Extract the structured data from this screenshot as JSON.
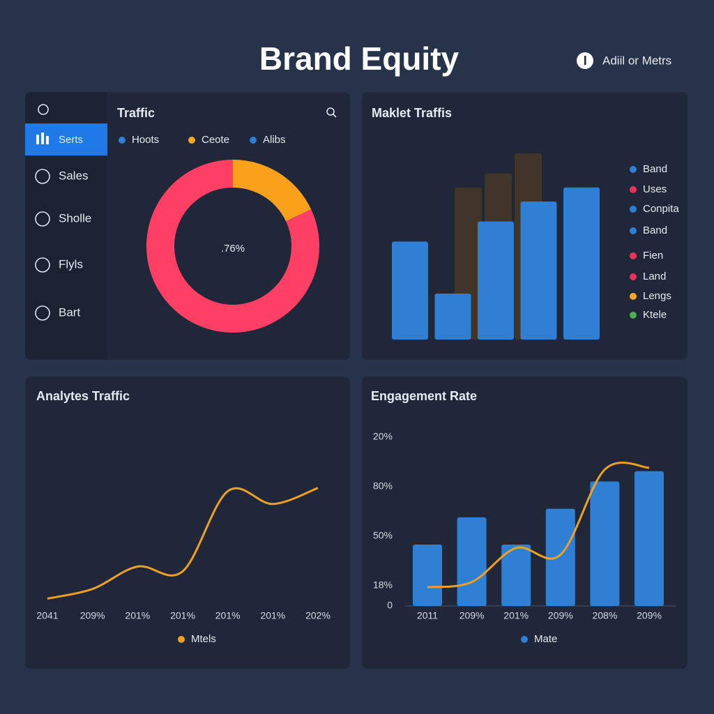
{
  "header": {
    "title": "Brand Equity",
    "action": "Adiil or Metrs"
  },
  "sidebar": {
    "items": [
      "Serts",
      "Sales",
      "Sholle",
      "Flyls",
      "Bart"
    ]
  },
  "chart_data": [
    {
      "type": "donut",
      "title": "Traffic",
      "legend": [
        {
          "name": "Hoots",
          "color": "#2f7fd4"
        },
        {
          "name": "Ceote",
          "color": "#f5a623"
        },
        {
          "name": "Alibs",
          "color": "#2f7fd4"
        }
      ],
      "center_label": ".76%",
      "values": [
        18,
        82
      ],
      "colors": [
        "#f9a11b",
        "#ff3f64"
      ]
    },
    {
      "type": "bar",
      "title": "Maklet Traffis",
      "ylim": [
        0,
        100
      ],
      "series": [
        {
          "color": "#4a3a26",
          "values": [
            76,
            83,
            93
          ]
        },
        {
          "color": "#2f7fd4",
          "values": [
            49,
            23,
            59,
            69,
            76
          ]
        }
      ],
      "legend": [
        {
          "name": "Band",
          "color": "#2f7fd4"
        },
        {
          "name": "Uses",
          "color": "#e8335e"
        },
        {
          "name": "Conpita",
          "color": "#2f7fd4"
        },
        {
          "name": "Band",
          "color": "#2f7fd4"
        },
        {
          "name": "Fien",
          "color": "#e8335e"
        },
        {
          "name": "Land",
          "color": "#e8335e"
        },
        {
          "name": "Lengs",
          "color": "#f5a623"
        },
        {
          "name": "Ktele",
          "color": "#4caf50"
        }
      ]
    },
    {
      "type": "line",
      "title": "Analytes Traffic",
      "ylim": [
        0,
        100
      ],
      "categories": [
        "2041",
        "209%",
        "201%",
        "201%",
        "201%",
        "201%",
        "202%"
      ],
      "series": [
        {
          "name": "Mtels",
          "color": "#f0a020",
          "values": [
            5,
            11,
            25,
            22,
            72,
            64,
            74
          ]
        }
      ]
    },
    {
      "type": "combo",
      "title": "Engagement Rate",
      "ylim": [
        0,
        110
      ],
      "yticks": [
        {
          "value": 99,
          "label": "20%"
        },
        {
          "value": 70,
          "label": "80%"
        },
        {
          "value": 41,
          "label": "50%"
        },
        {
          "value": 12,
          "label": "18%"
        },
        0
      ],
      "categories": [
        "2011",
        "209%",
        "201%",
        "209%",
        "208%",
        "209%"
      ],
      "series": [
        {
          "name": "Mate",
          "color": "#2f7fd4",
          "kind": "bar",
          "values": [
            36,
            52,
            36,
            57,
            73,
            79
          ]
        },
        {
          "color": "#f0a020",
          "kind": "line",
          "values": [
            11,
            14,
            34,
            30,
            80,
            81
          ]
        }
      ]
    }
  ]
}
